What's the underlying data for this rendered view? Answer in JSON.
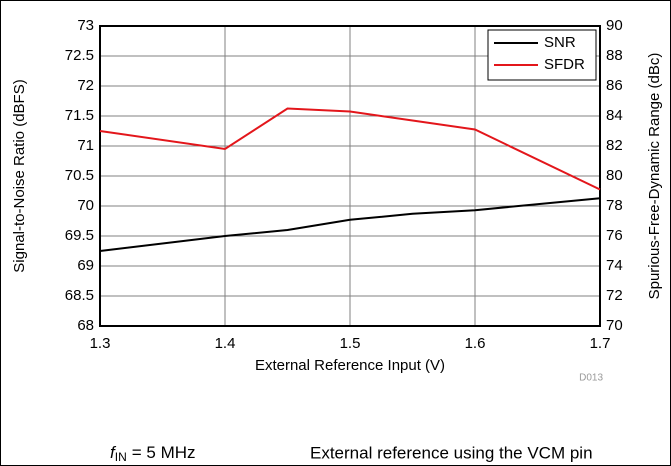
{
  "chart_data": {
    "type": "line",
    "x": [
      1.3,
      1.4,
      1.45,
      1.5,
      1.55,
      1.6,
      1.7
    ],
    "series": [
      {
        "name": "SNR",
        "color": "#000000",
        "values": [
          69.25,
          69.5,
          69.6,
          69.77,
          69.87,
          69.93,
          70.13
        ]
      },
      {
        "name": "SFDR",
        "color": "#e3161b",
        "axis": "y2",
        "values": [
          83.0,
          81.8,
          84.5,
          84.3,
          83.7,
          83.1,
          79.1
        ]
      }
    ],
    "xlabel": "External Reference Input (V)",
    "ylabel": "Signal-to-Noise Ratio (dBFS)",
    "y2label": "Spurious-Free-Dynamic Range (dBc)",
    "xlim": [
      1.3,
      1.7
    ],
    "xticks": [
      1.3,
      1.4,
      1.5,
      1.6,
      1.7
    ],
    "ylim": [
      68,
      73
    ],
    "yticks": [
      68,
      68.5,
      69,
      69.5,
      70,
      70.5,
      71,
      71.5,
      72,
      72.5,
      73
    ],
    "y2lim": [
      70,
      90
    ],
    "y2ticks": [
      70,
      72,
      74,
      76,
      78,
      80,
      82,
      84,
      86,
      88,
      90
    ],
    "grid": true,
    "legend": "upper right",
    "code": "D013",
    "footnote_left": {
      "symbol": "f",
      "subscript": "IN",
      "text": "= 5 MHz"
    },
    "footnote_right": "External reference using the VCM pin"
  }
}
